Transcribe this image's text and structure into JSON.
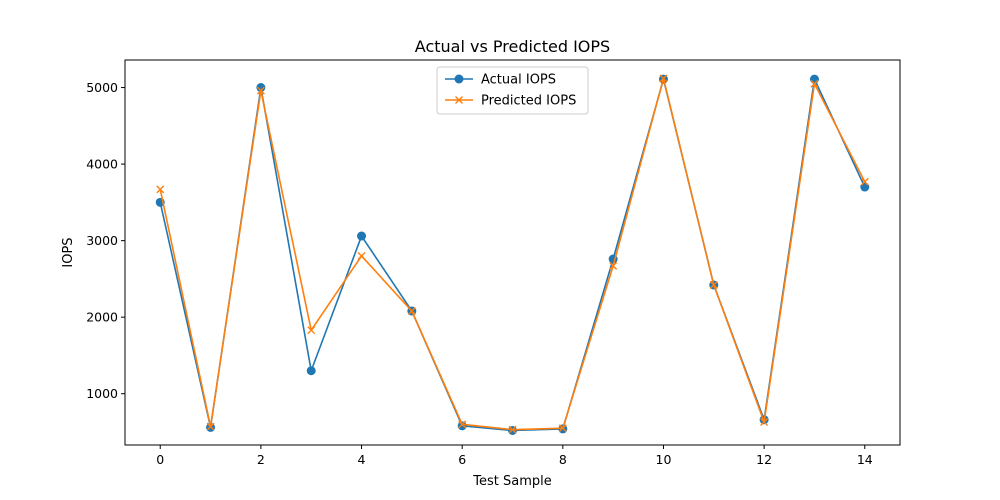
{
  "chart_data": {
    "type": "line",
    "title": "Actual vs Predicted IOPS",
    "xlabel": "Test Sample",
    "ylabel": "IOPS",
    "x": [
      0,
      1,
      2,
      3,
      4,
      5,
      6,
      7,
      8,
      9,
      10,
      11,
      12,
      13,
      14
    ],
    "xlim": [
      -0.7,
      14.7
    ],
    "ylim": [
      330,
      5360
    ],
    "xticks": [
      0,
      2,
      4,
      6,
      8,
      10,
      12,
      14
    ],
    "yticks": [
      1000,
      2000,
      3000,
      4000,
      5000
    ],
    "grid": false,
    "legend_position": "top-center",
    "series": [
      {
        "name": "Actual IOPS",
        "color": "#1f77b4",
        "marker": "circle",
        "values": [
          3500,
          560,
          5000,
          1300,
          3060,
          2080,
          580,
          520,
          540,
          2760,
          5110,
          2420,
          660,
          5110,
          3700
        ]
      },
      {
        "name": "Predicted IOPS",
        "color": "#ff7f0e",
        "marker": "x",
        "values": [
          3670,
          570,
          4960,
          1830,
          2800,
          2080,
          600,
          530,
          550,
          2670,
          5120,
          2420,
          630,
          5050,
          3770
        ]
      }
    ]
  }
}
